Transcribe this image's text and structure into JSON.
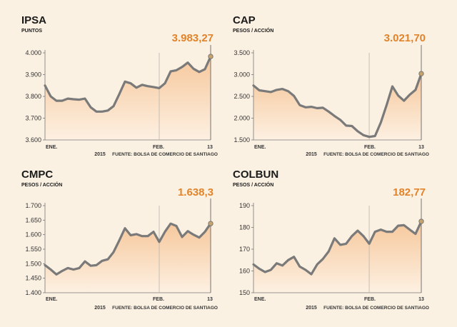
{
  "chart_data": [
    {
      "type": "area",
      "title": "IPSA",
      "subtitle": "PUNTOS",
      "last_label": "3.983,27",
      "y_ticks": [
        "4.000",
        "3.900",
        "3.800",
        "3.700",
        "3.600"
      ],
      "ylim": [
        3600,
        4000
      ],
      "x_labels": [
        "ENE.",
        "FEB.",
        "13"
      ],
      "year_label": "2015",
      "source": "FUENTE: BOLSA DE COMERCIO DE SANTIAGO",
      "x": [
        1,
        2,
        3,
        4,
        5,
        6,
        7,
        8,
        9,
        10,
        11,
        12,
        13,
        14,
        15,
        16,
        17,
        18,
        19,
        20,
        21,
        22,
        23,
        24,
        25,
        26,
        27,
        28,
        29
      ],
      "values": [
        3850,
        3800,
        3780,
        3780,
        3790,
        3787,
        3785,
        3790,
        3750,
        3730,
        3730,
        3735,
        3755,
        3810,
        3868,
        3860,
        3840,
        3853,
        3847,
        3843,
        3838,
        3860,
        3915,
        3920,
        3935,
        3955,
        3927,
        3912,
        3925
      ],
      "feb_x": 21,
      "last_value": 3983.27,
      "colors": {
        "line": "#7a7a7a",
        "fill_top": "#f6c89c",
        "fill_bottom": "#fdf0e2",
        "accent": "#e2832a"
      }
    },
    {
      "type": "area",
      "title": "CAP",
      "subtitle": "PESOS / ACCIÓN",
      "last_label": "3.021,70",
      "y_ticks": [
        "3.500",
        "3.000",
        "2.500",
        "2.000",
        "1.500"
      ],
      "ylim": [
        1500,
        3500
      ],
      "x_labels": [
        "ENE.",
        "FEB.",
        "13"
      ],
      "year_label": "2015",
      "source": "FUENTE: BOLSA DE COMERCIO DE SANTIAGO",
      "x": [
        1,
        2,
        3,
        4,
        5,
        6,
        7,
        8,
        9,
        10,
        11,
        12,
        13,
        14,
        15,
        16,
        17,
        18,
        19,
        20,
        21,
        22,
        23,
        24,
        25,
        26,
        27,
        28,
        29
      ],
      "values": [
        2750,
        2640,
        2620,
        2600,
        2650,
        2670,
        2620,
        2510,
        2300,
        2250,
        2260,
        2230,
        2240,
        2150,
        2050,
        1960,
        1830,
        1820,
        1700,
        1610,
        1570,
        1590,
        1900,
        2300,
        2730,
        2520,
        2400,
        2540,
        2650
      ],
      "feb_x": 21,
      "last_value": 3021.7,
      "colors": {
        "line": "#7a7a7a",
        "fill_top": "#f6c89c",
        "fill_bottom": "#fdf0e2",
        "accent": "#e2832a"
      }
    },
    {
      "type": "area",
      "title": "CMPC",
      "subtitle": "PESOS / ACCIÓN",
      "last_label": "1.638,3",
      "y_ticks": [
        "1.700",
        "1.650",
        "1.600",
        "1.550",
        "1.500",
        "1.450",
        "1.400"
      ],
      "ylim": [
        1400,
        1700
      ],
      "x_labels": [
        "ENE.",
        "FEB.",
        "13"
      ],
      "year_label": "2015",
      "source": "FUENTE: BOLSA DE COMERCIO DE SANTIAGO",
      "x": [
        1,
        2,
        3,
        4,
        5,
        6,
        7,
        8,
        9,
        10,
        11,
        12,
        13,
        14,
        15,
        16,
        17,
        18,
        19,
        20,
        21,
        22,
        23,
        24,
        25,
        26,
        27,
        28,
        29
      ],
      "values": [
        1495,
        1480,
        1463,
        1475,
        1485,
        1480,
        1485,
        1508,
        1493,
        1495,
        1510,
        1515,
        1540,
        1580,
        1622,
        1598,
        1602,
        1595,
        1595,
        1610,
        1575,
        1610,
        1638,
        1630,
        1592,
        1612,
        1600,
        1590,
        1610
      ],
      "feb_x": 21,
      "last_value": 1638.3,
      "colors": {
        "line": "#7a7a7a",
        "fill_top": "#f6c89c",
        "fill_bottom": "#fdf0e2",
        "accent": "#e2832a"
      }
    },
    {
      "type": "area",
      "title": "COLBUN",
      "subtitle": "PESOS / ACCIÓN",
      "last_label": "182,77",
      "y_ticks": [
        "190",
        "180",
        "170",
        "160",
        "150"
      ],
      "ylim": [
        150,
        190
      ],
      "x_labels": [
        "ENE.",
        "FEB.",
        "13"
      ],
      "year_label": "2015",
      "source": "FUENTE: BOLSA DE COMERCIO DE SANTIAGO",
      "x": [
        1,
        2,
        3,
        4,
        5,
        6,
        7,
        8,
        9,
        10,
        11,
        12,
        13,
        14,
        15,
        16,
        17,
        18,
        19,
        20,
        21,
        22,
        23,
        24,
        25,
        26,
        27,
        28,
        29
      ],
      "values": [
        163,
        161,
        159.5,
        160.5,
        163.5,
        162.5,
        165,
        166.5,
        162,
        160.5,
        158.5,
        163,
        165.5,
        169,
        175,
        172,
        172.5,
        176,
        178.5,
        176,
        172.5,
        178,
        179,
        178,
        178,
        180.8,
        181,
        179,
        177
      ],
      "feb_x": 21,
      "last_value": 182.77,
      "colors": {
        "line": "#7a7a7a",
        "fill_top": "#f6c89c",
        "fill_bottom": "#fdf0e2",
        "accent": "#e2832a"
      }
    }
  ]
}
